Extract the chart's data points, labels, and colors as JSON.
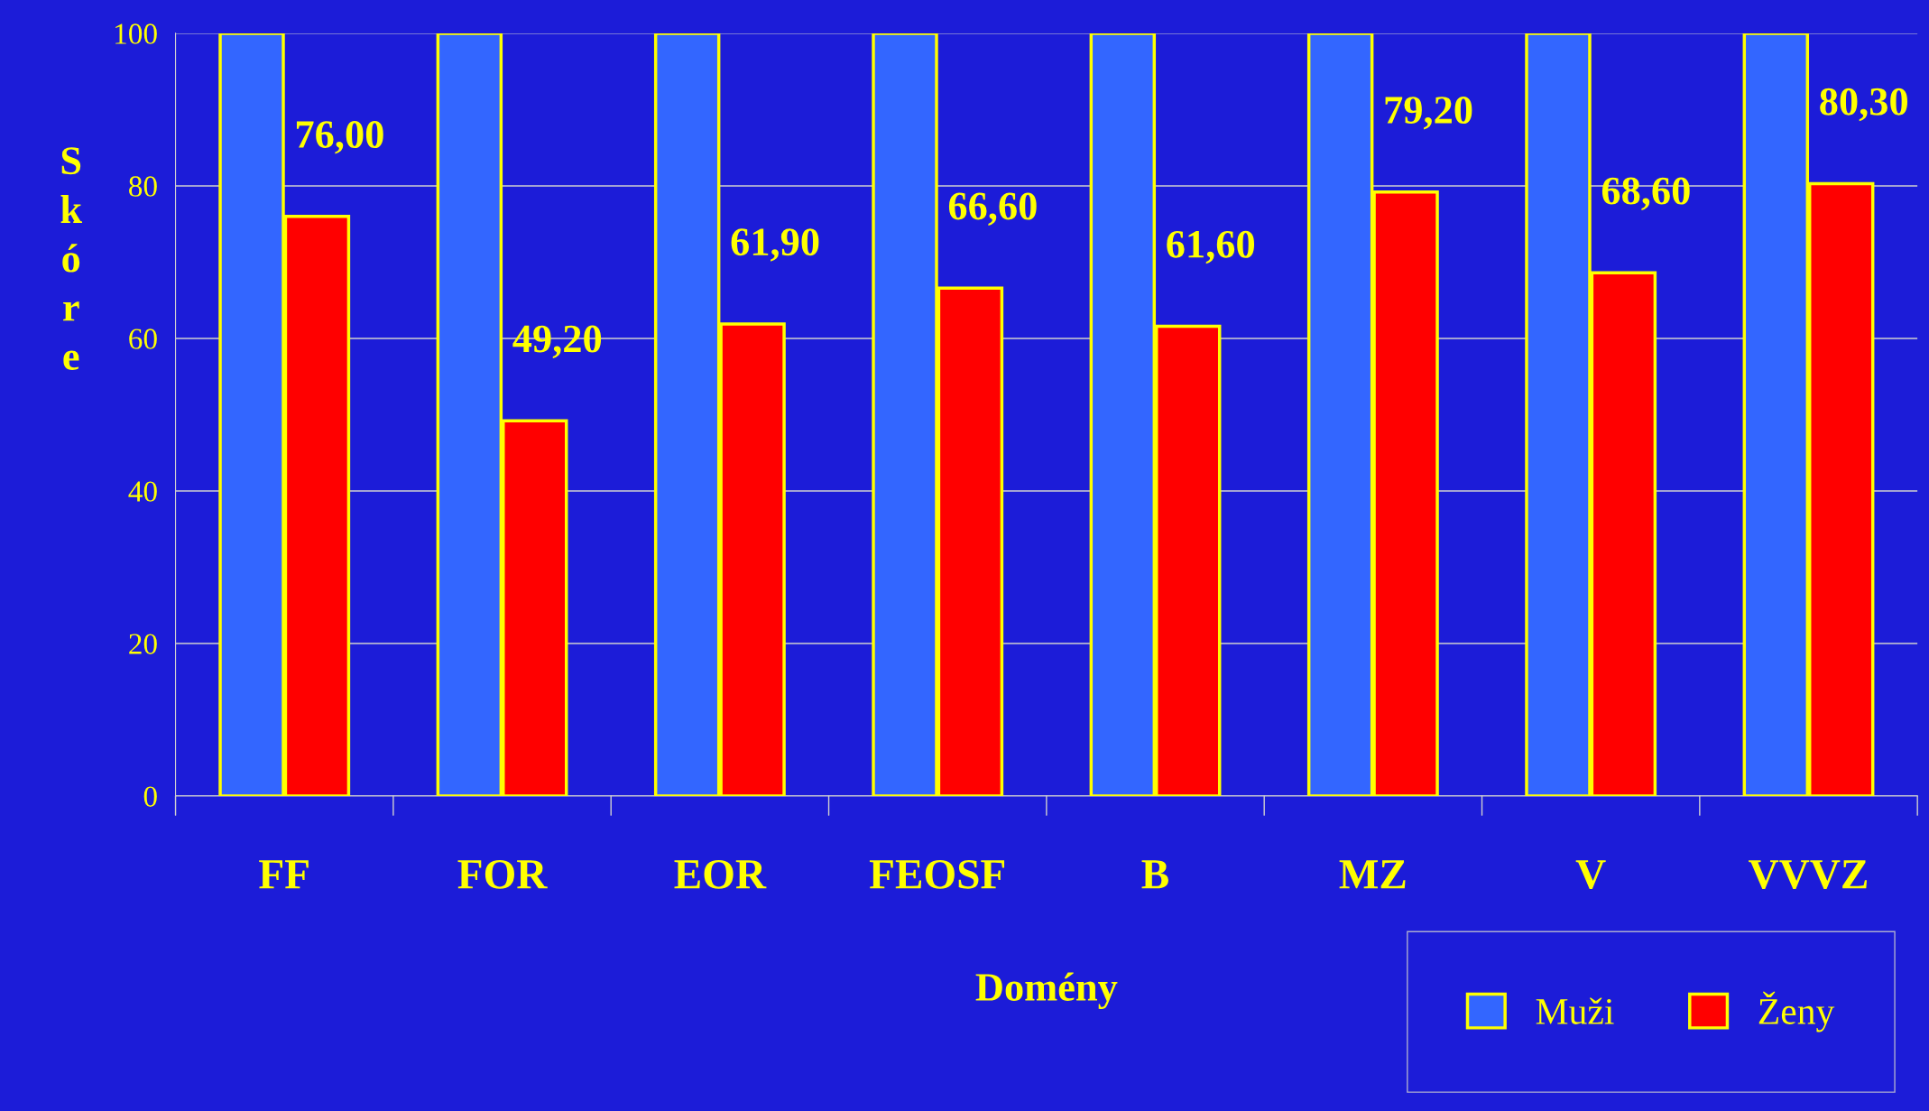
{
  "chart_data": {
    "type": "bar",
    "xlabel": "Domény",
    "ylabel": "Skóre",
    "categories": [
      "FF",
      "FOR",
      "EOR",
      "FEOSF",
      "B",
      "MZ",
      "V",
      "VVVZ"
    ],
    "series": [
      {
        "name": "Muži",
        "color": "#3366ff",
        "values": [
          100,
          100,
          100,
          100,
          100,
          100,
          100,
          100
        ]
      },
      {
        "name": "Ženy",
        "color": "#ff0000",
        "values": [
          76.0,
          49.2,
          61.9,
          66.6,
          61.6,
          79.2,
          68.6,
          80.3
        ],
        "value_labels": [
          "76,00",
          "49,20",
          "61,90",
          "66,60",
          "61,60",
          "79,20",
          "68,60",
          "80,30"
        ]
      }
    ],
    "ylim": [
      0,
      100
    ],
    "yticks": [
      0,
      20,
      40,
      60,
      80,
      100
    ],
    "grid": "y",
    "legend": "bottom right"
  }
}
